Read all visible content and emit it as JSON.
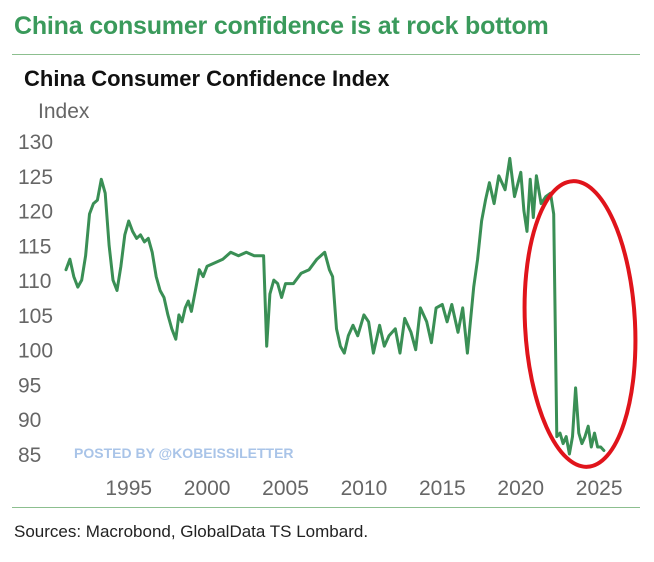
{
  "headline": "China consumer confidence is at rock bottom",
  "source": "Sources: Macrobond, GlobalData TS Lombard.",
  "watermark": "POSTED BY @KOBEISSILETTER",
  "colors": {
    "headline": "#3a9a5b",
    "line": "#3a8f55",
    "rule": "#8cbf8f",
    "annotation": "#e0141b"
  },
  "chart_data": {
    "type": "line",
    "title": "China Consumer Confidence Index",
    "ylabel": "Index",
    "xlabel": "",
    "xlim": [
      1991,
      2025.5
    ],
    "ylim": [
      85,
      130
    ],
    "xticks": [
      "1995",
      "2000",
      "2005",
      "2010",
      "2015",
      "2020",
      "2025"
    ],
    "yticks": [
      "130",
      "125",
      "120",
      "115",
      "110",
      "105",
      "100",
      "95",
      "90",
      "85"
    ],
    "grid": false,
    "legend": "none",
    "annotation": "red ellipse highlighting 2020–2025 collapse",
    "series": [
      {
        "x": [
          1991.0,
          1991.25,
          1991.5,
          1991.75,
          1992.0,
          1992.25,
          1992.5,
          1992.75,
          1993.0,
          1993.25,
          1993.5,
          1993.75,
          1994.0,
          1994.25,
          1994.5,
          1994.75,
          1995.0,
          1995.25,
          1995.5,
          1995.75,
          1996.0,
          1996.25,
          1996.5,
          1996.75,
          1997.0,
          1997.25,
          1997.5,
          1997.75,
          1998.0,
          1998.2,
          1998.4,
          1998.6,
          1998.8,
          1999.0,
          1999.25,
          1999.5,
          1999.75,
          2000.0,
          2000.5,
          2001.0,
          2001.5,
          2002.0,
          2002.5,
          2003.0,
          2003.3,
          2003.6,
          2003.8,
          2004.0,
          2004.25,
          2004.5,
          2004.75,
          2005.0,
          2005.5,
          2006.0,
          2006.5,
          2007.0,
          2007.5,
          2007.8,
          2008.0,
          2008.25,
          2008.5,
          2008.75,
          2009.0,
          2009.3,
          2009.6,
          2010.0,
          2010.3,
          2010.6,
          2011.0,
          2011.3,
          2011.6,
          2012.0,
          2012.3,
          2012.6,
          2013.0,
          2013.3,
          2013.6,
          2014.0,
          2014.3,
          2014.6,
          2015.0,
          2015.3,
          2015.6,
          2016.0,
          2016.3,
          2016.6,
          2017.0,
          2017.25,
          2017.5,
          2017.75,
          2018.0,
          2018.3,
          2018.6,
          2019.0,
          2019.3,
          2019.6,
          2020.0,
          2020.2,
          2020.4,
          2020.6,
          2020.8,
          2021.0,
          2021.3,
          2021.6,
          2021.9,
          2022.1,
          2022.3,
          2022.5,
          2022.7,
          2022.9,
          2023.1,
          2023.3,
          2023.5,
          2023.7,
          2023.9,
          2024.1,
          2024.3,
          2024.5,
          2024.7,
          2024.9,
          2025.1,
          2025.3
        ],
        "values": [
          111.5,
          113,
          110.5,
          109,
          110,
          113.5,
          119.5,
          121,
          121.5,
          124.5,
          122.5,
          115,
          110,
          108.5,
          112,
          116.5,
          118.5,
          117,
          116,
          116.5,
          115.5,
          116,
          114,
          110.5,
          108.5,
          107.5,
          105,
          103,
          101.5,
          105,
          104,
          106,
          107,
          105.5,
          108.5,
          111.5,
          110.5,
          112,
          112.5,
          113,
          114,
          113.5,
          114,
          113.5,
          113.5,
          113.5,
          100.5,
          108,
          110,
          109.5,
          107.5,
          109.5,
          109.5,
          111,
          111.5,
          113,
          114,
          111.5,
          110.5,
          103,
          100.5,
          99.5,
          102,
          103.5,
          102,
          105,
          104,
          99.5,
          103.5,
          100.5,
          102,
          103,
          99.5,
          104.5,
          102.5,
          100,
          106,
          104,
          101,
          106,
          106.5,
          104,
          106.5,
          102.5,
          106,
          99.5,
          109,
          113,
          118.5,
          121.5,
          124,
          121,
          125,
          123,
          127.5,
          122,
          125.5,
          120,
          117,
          124.5,
          119,
          125,
          121,
          122,
          122.5,
          119.5,
          87.5,
          88,
          86.5,
          87.5,
          85,
          87.5,
          94.5,
          88,
          86.5,
          87.5,
          89,
          86,
          88,
          86,
          86,
          85.5
        ]
      }
    ]
  }
}
